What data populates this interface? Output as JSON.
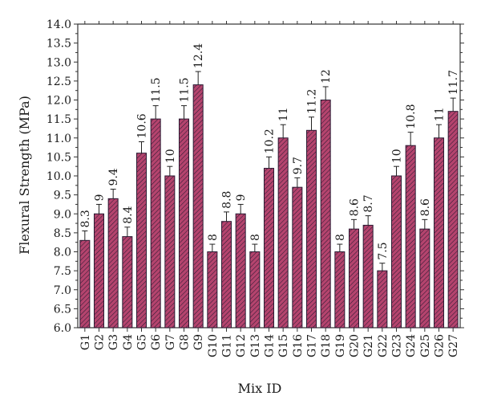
{
  "chart_data": {
    "type": "bar",
    "xlabel": "Mix ID",
    "ylabel": "Flexural Strength (MPa)",
    "ylim": [
      6.0,
      14.0
    ],
    "ytick_step": 0.5,
    "yticks": [
      "6.0",
      "6.5",
      "7.0",
      "7.5",
      "8.0",
      "8.5",
      "9.0",
      "9.5",
      "10.0",
      "10.5",
      "11.0",
      "11.5",
      "12.0",
      "12.5",
      "13.0",
      "13.5",
      "14.0"
    ],
    "categories": [
      "G1",
      "G2",
      "G3",
      "G4",
      "G5",
      "G6",
      "G7",
      "G8",
      "G9",
      "G10",
      "G11",
      "G12",
      "G13",
      "G14",
      "G15",
      "G16",
      "G17",
      "G18",
      "G19",
      "G20",
      "G21",
      "G22",
      "G23",
      "G24",
      "G25",
      "G26",
      "G27"
    ],
    "values": [
      8.3,
      9,
      9.4,
      8.4,
      10.6,
      11.5,
      10,
      11.5,
      12.4,
      8,
      8.8,
      9,
      8,
      10.2,
      11,
      9.7,
      11.2,
      12,
      8,
      8.6,
      8.7,
      7.5,
      10,
      10.8,
      8.6,
      11,
      11.7
    ],
    "data_labels": [
      "8.3",
      "9",
      "9.4",
      "8.4",
      "10.6",
      "11.5",
      "10",
      "11.5",
      "12.4",
      "8",
      "8.8",
      "9",
      "8",
      "10.2",
      "11",
      "9.7",
      "11.2",
      "12",
      "8",
      "8.6",
      "8.7",
      "7.5",
      "10",
      "10.8",
      "8.6",
      "11",
      "11.7"
    ],
    "error": [
      0.25,
      0.25,
      0.25,
      0.25,
      0.3,
      0.35,
      0.25,
      0.35,
      0.35,
      0.2,
      0.25,
      0.25,
      0.2,
      0.3,
      0.35,
      0.25,
      0.35,
      0.35,
      0.2,
      0.25,
      0.25,
      0.2,
      0.25,
      0.35,
      0.25,
      0.35,
      0.35
    ],
    "grid": false,
    "colors": {
      "bar_fill": "#b5446e",
      "hatch": "#2b1a33",
      "axis": "#333333"
    }
  }
}
